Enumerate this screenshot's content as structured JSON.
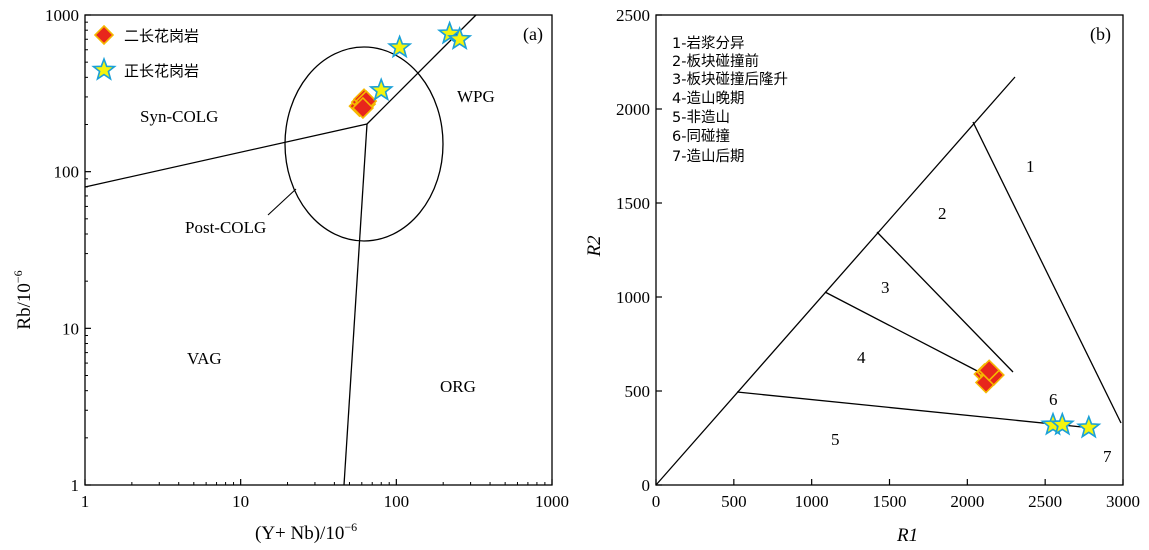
{
  "chart_data": [
    {
      "panel": "(a)",
      "type": "scatter",
      "xscale": "log",
      "yscale": "log",
      "xlim": [
        1,
        1000
      ],
      "ylim": [
        1,
        1000
      ],
      "x_ticks": [
        "1",
        "10",
        "100",
        "1000"
      ],
      "y_ticks": [
        "1",
        "10",
        "100",
        "1000"
      ],
      "xlabel_prefix": "(Y+ Nb)/10",
      "xlabel_exp": "−6",
      "ylabel_prefix": "Rb/10",
      "ylabel_exp": "−6",
      "grid": false,
      "legend_position": "top-left",
      "regions": [
        "Syn-COLG",
        "WPG",
        "VAG",
        "ORG",
        "Post-COLG"
      ],
      "series": [
        {
          "name": "二长花岗岩",
          "marker": "diamond",
          "color": "#e8261c",
          "edge": "#f5b800",
          "points": [
            [
              58,
              262
            ],
            [
              60,
              278
            ],
            [
              62,
              290
            ],
            [
              63,
              270
            ],
            [
              64,
              282
            ],
            [
              61,
              255
            ]
          ]
        },
        {
          "name": "正长花岗岩",
          "marker": "star",
          "color": "#f4f40e",
          "edge": "#1aa0d8",
          "points": [
            [
              80,
              330
            ],
            [
              105,
              620
            ],
            [
              220,
              760
            ],
            [
              255,
              700
            ]
          ]
        }
      ]
    },
    {
      "panel": "(b)",
      "type": "scatter",
      "xlim": [
        0,
        3000
      ],
      "ylim": [
        0,
        2500
      ],
      "x_ticks": [
        "0",
        "500",
        "1000",
        "1500",
        "2000",
        "2500",
        "3000"
      ],
      "y_ticks": [
        "0",
        "500",
        "1000",
        "1500",
        "2000",
        "2500"
      ],
      "xlabel": "R1",
      "ylabel": "R2",
      "grid": false,
      "legend_position": "top-left",
      "legend_entries": [
        "1-岩浆分异",
        "2-板块碰撞前",
        "3-板块碰撞后隆升",
        "4-造山晚期",
        "5-非造山",
        "6-同碰撞",
        "7-造山后期"
      ],
      "region_numbers": [
        "1",
        "2",
        "3",
        "4",
        "5",
        "6",
        "7"
      ],
      "series": [
        {
          "name": "二长花岗岩",
          "marker": "diamond",
          "color": "#e8261c",
          "edge": "#f5b800",
          "points": [
            [
              2110,
              590
            ],
            [
              2130,
              600
            ],
            [
              2150,
              580
            ],
            [
              2120,
              545
            ],
            [
              2170,
              585
            ],
            [
              2140,
              610
            ]
          ]
        },
        {
          "name": "正长花岗岩",
          "marker": "star",
          "color": "#f4f40e",
          "edge": "#1aa0d8",
          "points": [
            [
              2550,
              320
            ],
            [
              2610,
              320
            ],
            [
              2780,
              305
            ]
          ]
        }
      ]
    }
  ]
}
